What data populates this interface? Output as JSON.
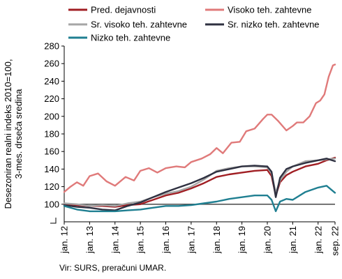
{
  "chart_data": {
    "type": "line",
    "title": "",
    "ylabel_lines": [
      "Desezoniran realni indeks 2010=100,",
      "3-mes. drseča sredina"
    ],
    "xlabel": "",
    "ylim": [
      80,
      280
    ],
    "y_ticks": [
      100,
      120,
      140,
      160,
      180,
      200,
      220,
      240,
      260,
      280
    ],
    "y_tick_labels": [
      "100",
      "120",
      "140",
      "160",
      "180",
      "200",
      "220",
      "240",
      "260",
      "280"
    ],
    "x_domain": [
      "2012-01",
      "2022-09"
    ],
    "x_ticks": [
      "2012-01",
      "2013-01",
      "2014-01",
      "2015-01",
      "2016-01",
      "2017-01",
      "2018-01",
      "2019-01",
      "2020-01",
      "2021-01",
      "2022-01",
      "2022-09"
    ],
    "x_tick_labels": [
      "jan. 12",
      "jan. 13",
      "jan. 14",
      "jan. 15",
      "jan. 16",
      "jan. 17",
      "jan. 18",
      "jan. 19",
      "jan. 20",
      "jan. 21",
      "jan. 22",
      "sep. 22"
    ],
    "reference_line": 100,
    "grid": false,
    "legend_position": "top",
    "series": [
      {
        "name": "Pred. dejavnosti",
        "color": "#a01e23",
        "points": [
          [
            "2012-01",
            100
          ],
          [
            "2012-07",
            99
          ],
          [
            "2013-01",
            98
          ],
          [
            "2013-07",
            98
          ],
          [
            "2014-01",
            97
          ],
          [
            "2014-07",
            99
          ],
          [
            "2015-01",
            100
          ],
          [
            "2015-07",
            105
          ],
          [
            "2016-01",
            110
          ],
          [
            "2016-07",
            113
          ],
          [
            "2017-01",
            118
          ],
          [
            "2017-07",
            124
          ],
          [
            "2018-01",
            131
          ],
          [
            "2018-07",
            134
          ],
          [
            "2019-01",
            136
          ],
          [
            "2019-07",
            138
          ],
          [
            "2020-01",
            139
          ],
          [
            "2020-03",
            132
          ],
          [
            "2020-05",
            110
          ],
          [
            "2020-07",
            125
          ],
          [
            "2020-10",
            133
          ],
          [
            "2021-01",
            137
          ],
          [
            "2021-07",
            143
          ],
          [
            "2022-01",
            146
          ],
          [
            "2022-05",
            150
          ],
          [
            "2022-09",
            153
          ]
        ]
      },
      {
        "name": "Visoko teh. zahtevne",
        "color": "#e07a7a",
        "points": [
          [
            "2012-01",
            114
          ],
          [
            "2012-04",
            120
          ],
          [
            "2012-07",
            125
          ],
          [
            "2012-10",
            121
          ],
          [
            "2013-01",
            132
          ],
          [
            "2013-05",
            135
          ],
          [
            "2013-09",
            126
          ],
          [
            "2014-01",
            121
          ],
          [
            "2014-06",
            131
          ],
          [
            "2014-10",
            127
          ],
          [
            "2015-01",
            138
          ],
          [
            "2015-05",
            141
          ],
          [
            "2015-09",
            136
          ],
          [
            "2016-01",
            141
          ],
          [
            "2016-06",
            143
          ],
          [
            "2016-10",
            142
          ],
          [
            "2017-01",
            148
          ],
          [
            "2017-06",
            152
          ],
          [
            "2017-10",
            157
          ],
          [
            "2018-01",
            164
          ],
          [
            "2018-04",
            158
          ],
          [
            "2018-08",
            170
          ],
          [
            "2018-12",
            171
          ],
          [
            "2019-03",
            183
          ],
          [
            "2019-07",
            186
          ],
          [
            "2019-11",
            197
          ],
          [
            "2020-01",
            202
          ],
          [
            "2020-03",
            202
          ],
          [
            "2020-06",
            195
          ],
          [
            "2020-10",
            184
          ],
          [
            "2021-01",
            189
          ],
          [
            "2021-03",
            193
          ],
          [
            "2021-06",
            193
          ],
          [
            "2021-09",
            200
          ],
          [
            "2021-12",
            215
          ],
          [
            "2022-02",
            218
          ],
          [
            "2022-04",
            225
          ],
          [
            "2022-06",
            245
          ],
          [
            "2022-08",
            258
          ],
          [
            "2022-09",
            259
          ]
        ]
      },
      {
        "name": "Sr. visoko teh. zahtevne",
        "color": "#a6a6a6",
        "points": [
          [
            "2012-01",
            101
          ],
          [
            "2012-07",
            100
          ],
          [
            "2013-01",
            98
          ],
          [
            "2013-07",
            99
          ],
          [
            "2014-01",
            98
          ],
          [
            "2014-07",
            101
          ],
          [
            "2015-01",
            103
          ],
          [
            "2015-07",
            108
          ],
          [
            "2016-01",
            112
          ],
          [
            "2016-07",
            115
          ],
          [
            "2017-01",
            120
          ],
          [
            "2017-07",
            128
          ],
          [
            "2018-01",
            138
          ],
          [
            "2018-07",
            141
          ],
          [
            "2019-01",
            143
          ],
          [
            "2019-07",
            143
          ],
          [
            "2020-01",
            142
          ],
          [
            "2020-03",
            135
          ],
          [
            "2020-05",
            113
          ],
          [
            "2020-07",
            127
          ],
          [
            "2020-10",
            137
          ],
          [
            "2021-01",
            143
          ],
          [
            "2021-07",
            149
          ],
          [
            "2022-01",
            150
          ],
          [
            "2022-05",
            151
          ],
          [
            "2022-09",
            152
          ]
        ]
      },
      {
        "name": "Sr. nizko teh. zahtevne",
        "color": "#2e3040",
        "points": [
          [
            "2012-01",
            99
          ],
          [
            "2012-07",
            97
          ],
          [
            "2013-01",
            96
          ],
          [
            "2013-07",
            94
          ],
          [
            "2014-01",
            93
          ],
          [
            "2014-07",
            98
          ],
          [
            "2015-01",
            102
          ],
          [
            "2015-07",
            108
          ],
          [
            "2016-01",
            114
          ],
          [
            "2016-07",
            119
          ],
          [
            "2017-01",
            124
          ],
          [
            "2017-07",
            130
          ],
          [
            "2018-01",
            137
          ],
          [
            "2018-07",
            140
          ],
          [
            "2019-01",
            143
          ],
          [
            "2019-07",
            144
          ],
          [
            "2020-01",
            143
          ],
          [
            "2020-03",
            137
          ],
          [
            "2020-05",
            108
          ],
          [
            "2020-07",
            130
          ],
          [
            "2020-10",
            140
          ],
          [
            "2021-01",
            143
          ],
          [
            "2021-07",
            147
          ],
          [
            "2022-01",
            150
          ],
          [
            "2022-05",
            152
          ],
          [
            "2022-09",
            149
          ]
        ]
      },
      {
        "name": "Nizko teh. zahtevne",
        "color": "#1f7f91",
        "points": [
          [
            "2012-01",
            98
          ],
          [
            "2012-07",
            94
          ],
          [
            "2013-01",
            92
          ],
          [
            "2013-07",
            92
          ],
          [
            "2014-01",
            92
          ],
          [
            "2014-07",
            93
          ],
          [
            "2015-01",
            94
          ],
          [
            "2015-07",
            96
          ],
          [
            "2016-01",
            98
          ],
          [
            "2016-07",
            98
          ],
          [
            "2017-01",
            99
          ],
          [
            "2017-07",
            101
          ],
          [
            "2018-01",
            103
          ],
          [
            "2018-07",
            106
          ],
          [
            "2019-01",
            108
          ],
          [
            "2019-07",
            110
          ],
          [
            "2020-01",
            110
          ],
          [
            "2020-03",
            105
          ],
          [
            "2020-05",
            92
          ],
          [
            "2020-07",
            103
          ],
          [
            "2020-10",
            106
          ],
          [
            "2021-01",
            105
          ],
          [
            "2021-07",
            114
          ],
          [
            "2022-01",
            119
          ],
          [
            "2022-05",
            121
          ],
          [
            "2022-09",
            113
          ]
        ]
      }
    ]
  },
  "source_note": "Vir: SURS, preračuni UMAR."
}
